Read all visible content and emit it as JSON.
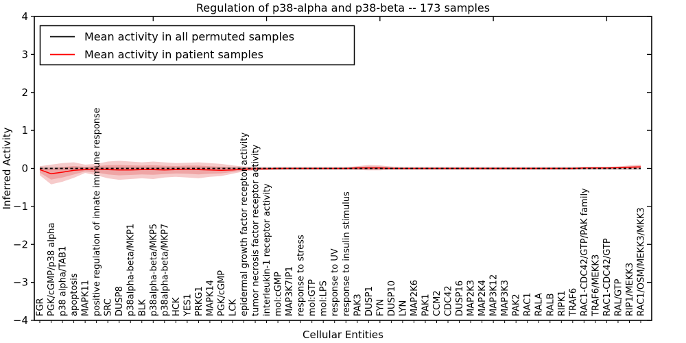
{
  "chart_data": {
    "type": "line",
    "title": "Regulation of p38-alpha and p38-beta -- 173 samples",
    "xlabel": "Cellular Entities",
    "ylabel": "Inferred Activity",
    "ylim": [
      -4,
      4
    ],
    "ytick_labels": [
      "4",
      "3",
      "2",
      "1",
      "0",
      "−1",
      "−2",
      "−3",
      "−4"
    ],
    "ytick_values": [
      4,
      3,
      2,
      1,
      0,
      -1,
      -2,
      -3,
      -4
    ],
    "grid": false,
    "legend_position": "upper left",
    "legend": [
      {
        "label": "Mean activity in all permuted samples",
        "color": "#000000"
      },
      {
        "label": "Mean activity in patient samples",
        "color": "#ff0000"
      }
    ],
    "colors": {
      "permuted_line": "#000000",
      "permuted_band": "#c8c8c8",
      "patient_line": "#ff0000",
      "patient_band": "#dd4444"
    },
    "categories": [
      "FGR",
      "PGK/cGMP/p38 alpha",
      "p38 alpha/TAB1",
      "apoptosis",
      "MAPK11",
      "positive regulation of innate immune response",
      "SRC",
      "DUSP8",
      "p38alpha-beta/MKP1",
      "BLK",
      "p38alpha-beta/MKP5",
      "p38alpha-beta/MKP7",
      "HCK",
      "YES1",
      "PRKG1",
      "MAPK14",
      "PGK/cGMP",
      "LCK",
      "epidermal growth factor receptor activity",
      "tumor necrosis factor receptor activity",
      "interleukin-1 receptor activity",
      "mol:cGMP",
      "MAP3K7IP1",
      "response to stress",
      "mol:GTP",
      "mol:LPS",
      "response to UV",
      "response to insulin stimulus",
      "PAK3",
      "DUSP1",
      "FYN",
      "DUSP10",
      "LYN",
      "MAP2K6",
      "PAK1",
      "CCM2",
      "CDC42",
      "DUSP16",
      "MAP2K3",
      "MAP2K4",
      "MAP3K12",
      "MAP3K3",
      "PAK2",
      "RAC1",
      "RALA",
      "RALB",
      "RIPK1",
      "TRAF6",
      "RAC1-CDC42/GTP/PAK family",
      "TRAF6/MEKK3",
      "RAC1-CDC42/GTP",
      "RAL/GTP",
      "RIP1/MEKK3",
      "RAC1/OSM/MEKK3/MKK3"
    ],
    "series": [
      {
        "name": "Mean activity in all permuted samples",
        "style": "dashed-black",
        "values": [
          0,
          0,
          0,
          0,
          0,
          0,
          0,
          0,
          0,
          0,
          0,
          0,
          0,
          0,
          0,
          0,
          0,
          0,
          0,
          0,
          0,
          0,
          0,
          0,
          0,
          0,
          0,
          0,
          0,
          0,
          0,
          0,
          0,
          0,
          0,
          0,
          0,
          0,
          0,
          0,
          0,
          0,
          0,
          0,
          0,
          0,
          0,
          0,
          0,
          0,
          0,
          0,
          0,
          0
        ],
        "band_half_width": 0.045
      },
      {
        "name": "Mean activity in patient samples",
        "style": "solid-red",
        "values": [
          -0.03,
          -0.14,
          -0.1,
          -0.05,
          -0.03,
          -0.02,
          -0.03,
          -0.04,
          -0.04,
          -0.03,
          -0.03,
          -0.04,
          -0.03,
          -0.02,
          -0.03,
          -0.04,
          -0.05,
          -0.04,
          -0.02,
          -0.01,
          -0.01,
          0,
          0,
          0,
          0,
          0,
          0,
          0,
          0.01,
          0.01,
          0.01,
          0,
          0,
          0,
          0,
          0,
          0,
          0,
          0,
          0,
          0,
          0,
          0,
          0,
          0,
          0,
          0,
          0,
          0.01,
          0.01,
          0.01,
          0.02,
          0.03,
          0.04
        ],
        "band_high": [
          0.06,
          0.1,
          0.14,
          0.16,
          0.1,
          0.12,
          0.18,
          0.2,
          0.18,
          0.16,
          0.18,
          0.16,
          0.14,
          0.15,
          0.16,
          0.14,
          0.12,
          0.08,
          0.05,
          0.04,
          0.03,
          0.03,
          0.03,
          0.03,
          0.03,
          0.03,
          0.03,
          0.03,
          0.06,
          0.09,
          0.08,
          0.05,
          0.03,
          0.03,
          0.03,
          0.03,
          0.03,
          0.03,
          0.03,
          0.03,
          0.03,
          0.03,
          0.03,
          0.03,
          0.03,
          0.03,
          0.03,
          0.03,
          0.03,
          0.04,
          0.04,
          0.05,
          0.08,
          0.1
        ],
        "band_low": [
          -0.18,
          -0.42,
          -0.35,
          -0.25,
          -0.12,
          -0.18,
          -0.26,
          -0.3,
          -0.28,
          -0.26,
          -0.28,
          -0.24,
          -0.22,
          -0.24,
          -0.26,
          -0.22,
          -0.2,
          -0.14,
          -0.08,
          -0.05,
          -0.04,
          -0.04,
          -0.03,
          -0.03,
          -0.03,
          -0.03,
          -0.03,
          -0.03,
          -0.04,
          -0.05,
          -0.05,
          -0.03,
          -0.03,
          -0.03,
          -0.03,
          -0.03,
          -0.03,
          -0.03,
          -0.03,
          -0.03,
          -0.03,
          -0.03,
          -0.03,
          -0.03,
          -0.03,
          -0.03,
          -0.03,
          -0.03,
          -0.02,
          -0.02,
          -0.02,
          -0.02,
          -0.02,
          -0.01
        ]
      }
    ]
  }
}
